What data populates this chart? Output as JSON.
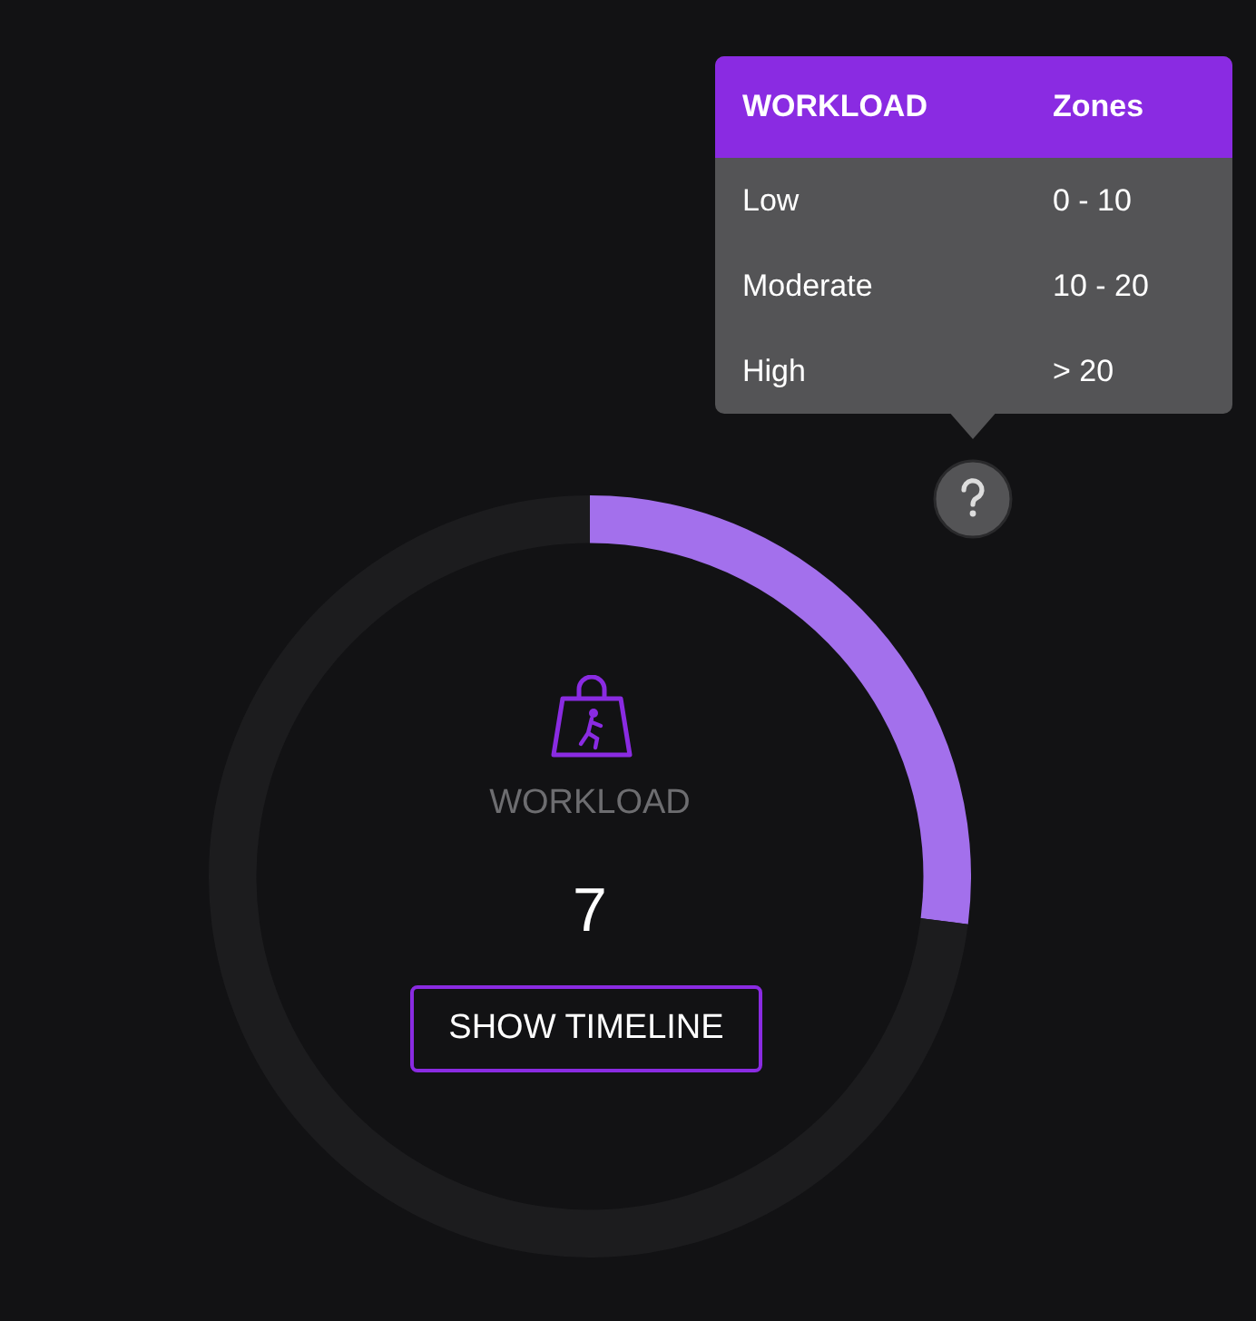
{
  "chart_data": {
    "type": "donut",
    "title": "WORKLOAD",
    "categories": [
      null,
      null
    ],
    "values": [
      27,
      73
    ],
    "colors": [
      "#a370ec",
      "#1c1c1e"
    ],
    "legend": false,
    "annotations": [
      "7",
      "SHOW TIMELINE",
      "WORKLOAD",
      "Zones",
      "Low",
      "0 - 10",
      "Moderate",
      "10 - 20",
      "High",
      "> 20"
    ]
  }
}
